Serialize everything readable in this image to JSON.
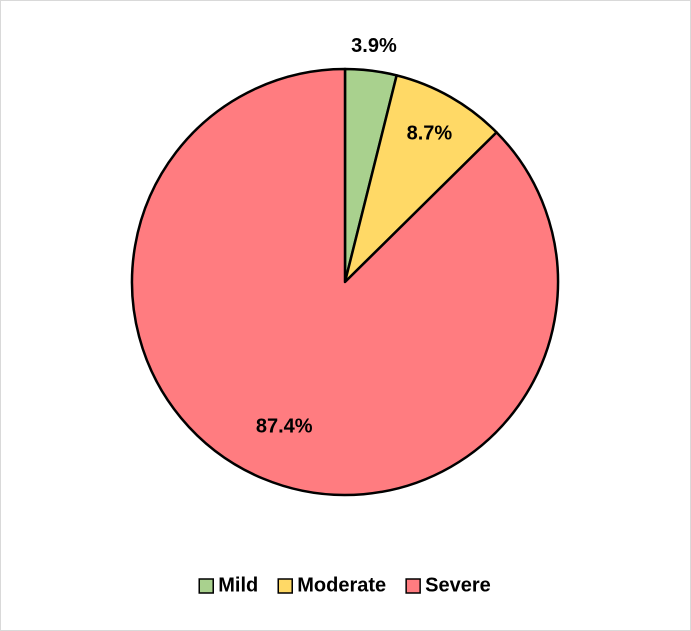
{
  "chart_data": {
    "type": "pie",
    "categories": [
      "Mild",
      "Moderate",
      "Severe"
    ],
    "values": [
      3.9,
      8.7,
      87.4
    ],
    "value_labels": [
      "3.9%",
      "8.7%",
      "87.4%"
    ],
    "colors": [
      "#a9d18e",
      "#ffd966",
      "#ff7c80"
    ],
    "legend": "bottom"
  }
}
